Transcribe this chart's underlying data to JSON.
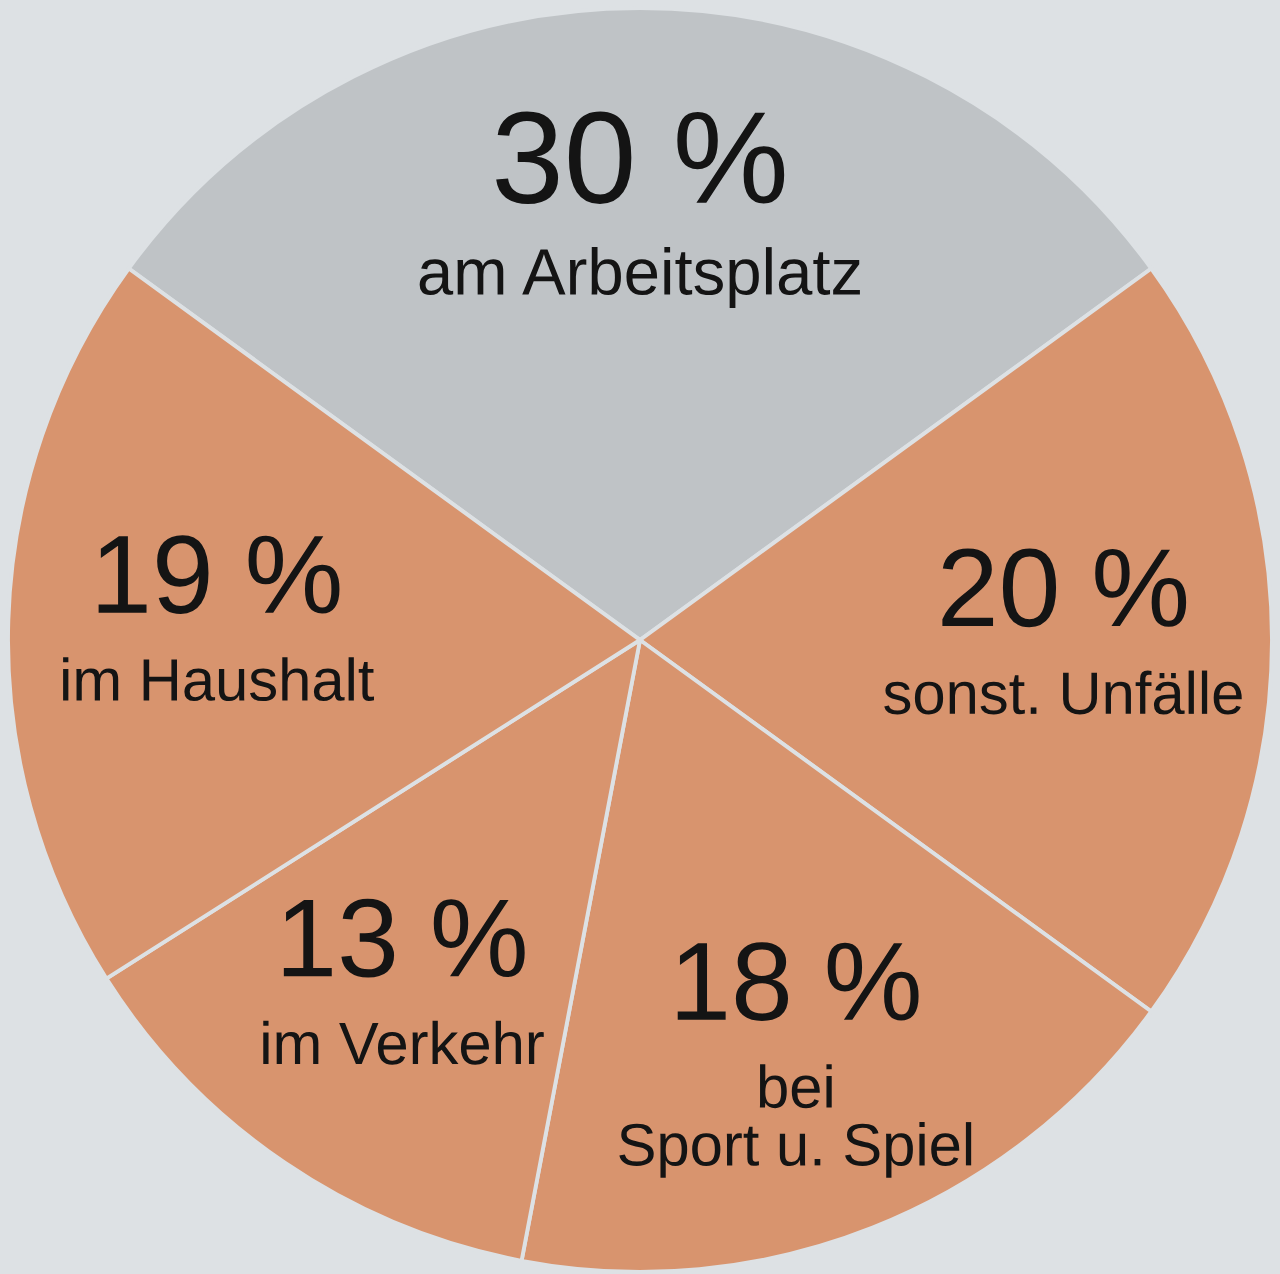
{
  "chart_data": {
    "type": "pie",
    "categories": [
      "am Arbeitsplatz",
      "sonst. Unfälle",
      "bei\nSport u. Spiel",
      "im Verkehr",
      "im Haushalt"
    ],
    "values": [
      30,
      20,
      18,
      13,
      19
    ],
    "colors": [
      "#bfc3c6",
      "#d8946e",
      "#d8946e",
      "#d8946e",
      "#d8946e"
    ],
    "value_labels": [
      "30 %",
      "20 %",
      "18 %",
      "13 %",
      "19 %"
    ]
  }
}
